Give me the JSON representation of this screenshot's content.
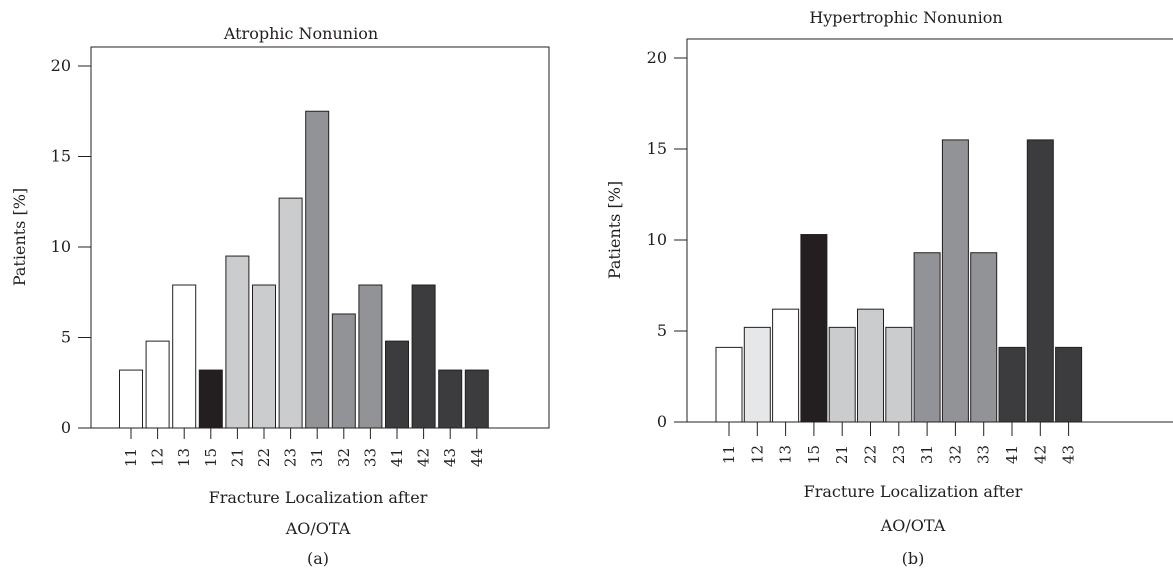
{
  "chart_data": [
    {
      "type": "bar",
      "title": "Atrophic Nonunion",
      "ylabel": "Patients [%]",
      "xlabel_line1": "Fracture Localization after",
      "xlabel_line2": "AO/OTA",
      "caption": "(a)",
      "ylim": [
        0,
        21
      ],
      "yticks": [
        0,
        5,
        10,
        15,
        20
      ],
      "categories": [
        "11",
        "12",
        "13",
        "15",
        "21",
        "22",
        "23",
        "31",
        "32",
        "33",
        "41",
        "42",
        "43",
        "44"
      ],
      "values": [
        3.2,
        4.8,
        7.9,
        3.2,
        9.5,
        7.9,
        12.7,
        17.5,
        6.3,
        7.9,
        4.8,
        7.9,
        3.2,
        3.2
      ],
      "colors": [
        "#ffffff",
        "#ffffff",
        "#ffffff",
        "#231f20",
        "#cbcccd",
        "#cbcccd",
        "#cbcccd",
        "#929396",
        "#929396",
        "#929396",
        "#3c3c3e",
        "#3c3c3e",
        "#3c3c3e",
        "#3c3c3e"
      ]
    },
    {
      "type": "bar",
      "title": "Hypertrophic Nonunion",
      "ylabel": "Patients [%]",
      "xlabel_line1": "Fracture Localization after",
      "xlabel_line2": "AO/OTA",
      "caption": "(b)",
      "ylim": [
        0,
        21
      ],
      "yticks": [
        0,
        5,
        10,
        15,
        20
      ],
      "categories": [
        "11",
        "12",
        "13",
        "15",
        "21",
        "22",
        "23",
        "31",
        "32",
        "33",
        "41",
        "42",
        "43"
      ],
      "values": [
        4.1,
        5.2,
        6.2,
        10.3,
        5.2,
        6.2,
        5.2,
        9.3,
        15.5,
        9.3,
        4.1,
        15.5,
        4.1
      ],
      "colors": [
        "#ffffff",
        "#e6e7e8",
        "#ffffff",
        "#231f20",
        "#cbcccd",
        "#cbcccd",
        "#cbcccd",
        "#929396",
        "#929396",
        "#929396",
        "#3c3c3e",
        "#3c3c3e",
        "#3c3c3e"
      ]
    }
  ]
}
